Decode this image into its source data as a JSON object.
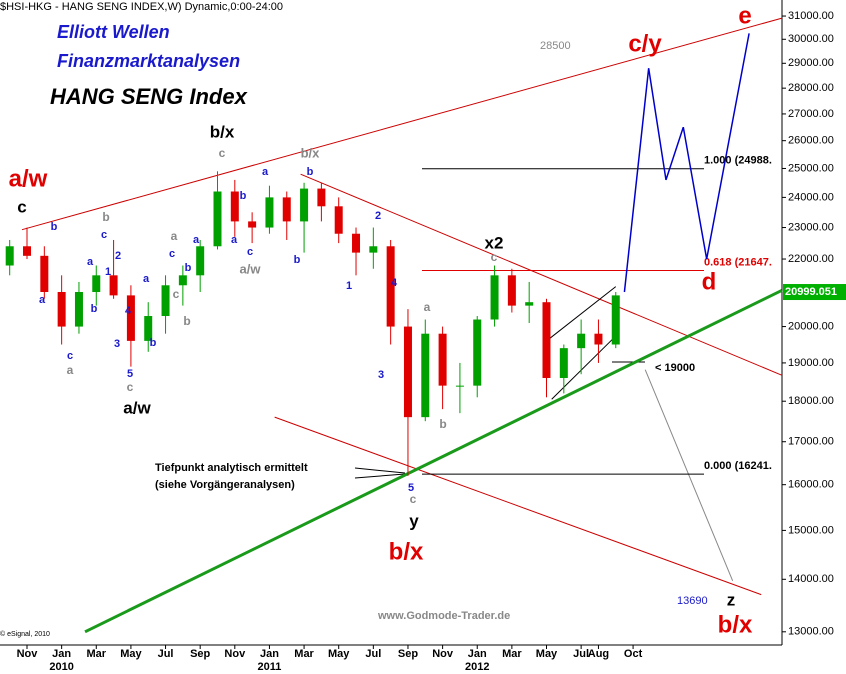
{
  "chart_data": {
    "type": "candlestick",
    "title": "$HSI-HKG - HANG SENG INDEX,W) Dynamic,0:00-24:00",
    "headers": [
      "Elliott Wellen",
      "Finanzmarktanalysen",
      "HANG SENG Index"
    ],
    "log_scale": true,
    "xlim": [
      -1.56,
      43.6
    ],
    "ylim": [
      12760,
      31710
    ],
    "yticks": [
      {
        "value": 13000,
        "label": "13000.00"
      },
      {
        "value": 14000,
        "label": "14000.00"
      },
      {
        "value": 15000,
        "label": "15000.00"
      },
      {
        "value": 16000,
        "label": "16000.00"
      },
      {
        "value": 17000,
        "label": "17000.00"
      },
      {
        "value": 18000,
        "label": "18000.00"
      },
      {
        "value": 19000,
        "label": "19000.00"
      },
      {
        "value": 20000,
        "label": "20000.00"
      },
      {
        "value": 22000,
        "label": "22000.00"
      },
      {
        "value": 23000,
        "label": "23000.00"
      },
      {
        "value": 24000,
        "label": "24000.00"
      },
      {
        "value": 25000,
        "label": "25000.00"
      },
      {
        "value": 26000,
        "label": "26000.00"
      },
      {
        "value": 27000,
        "label": "27000.00"
      },
      {
        "value": 28000,
        "label": "28000.00"
      },
      {
        "value": 29000,
        "label": "29000.00"
      },
      {
        "value": 30000,
        "label": "30000.00"
      },
      {
        "value": 31000,
        "label": "31000.00"
      }
    ],
    "xticks": [
      {
        "value": 0,
        "label": "Nov"
      },
      {
        "value": 2,
        "label": "Jan"
      },
      {
        "value": 4,
        "label": "Mar"
      },
      {
        "value": 6,
        "label": "May"
      },
      {
        "value": 8,
        "label": "Jul"
      },
      {
        "value": 10,
        "label": "Sep"
      },
      {
        "value": 12,
        "label": "Nov"
      },
      {
        "value": 14,
        "label": "Jan"
      },
      {
        "value": 16,
        "label": "Mar"
      },
      {
        "value": 18,
        "label": "May"
      },
      {
        "value": 20,
        "label": "Jul"
      },
      {
        "value": 22,
        "label": "Sep"
      },
      {
        "value": 24,
        "label": "Nov"
      },
      {
        "value": 26,
        "label": "Jan"
      },
      {
        "value": 28,
        "label": "Mar"
      },
      {
        "value": 30,
        "label": "May"
      },
      {
        "value": 32,
        "label": "Jul"
      },
      {
        "value": 33,
        "label": "Aug"
      },
      {
        "value": 35,
        "label": "Oct"
      }
    ],
    "year_labels": [
      {
        "value": 2,
        "label": "2010"
      },
      {
        "value": 14,
        "label": "2011"
      },
      {
        "value": 26,
        "label": "2012"
      }
    ],
    "up_color": "#00a000",
    "down_color": "#e00000",
    "candles": {
      "x": [
        -1,
        0,
        1,
        2,
        3,
        4,
        5,
        6,
        7,
        8,
        9,
        10,
        11,
        12,
        13,
        14,
        15,
        16,
        17,
        18,
        19,
        20,
        21,
        22,
        23,
        24,
        25,
        26,
        27,
        28,
        29,
        30,
        31,
        32,
        33,
        34
      ],
      "open": [
        21800,
        22400,
        22100,
        21000,
        20000,
        21000,
        21500,
        20900,
        19600,
        20300,
        21200,
        21500,
        22400,
        24200,
        23200,
        23000,
        24000,
        23200,
        24300,
        23700,
        22800,
        22200,
        22400,
        20000,
        17600,
        19800,
        18400,
        18400,
        20200,
        21500,
        20600,
        20700,
        18600,
        19400,
        19800,
        19500
      ],
      "high": [
        22600,
        23000,
        22400,
        21500,
        21300,
        21800,
        22600,
        21200,
        20700,
        21500,
        21800,
        22600,
        24900,
        24600,
        23500,
        24400,
        24200,
        24500,
        24500,
        24000,
        23000,
        23000,
        22600,
        20500,
        20200,
        20000,
        19000,
        20300,
        21800,
        21700,
        21300,
        20800,
        19500,
        20200,
        20200,
        21000
      ],
      "low": [
        21500,
        22000,
        20800,
        19500,
        19800,
        20600,
        20800,
        18900,
        19300,
        19800,
        20600,
        21000,
        22300,
        22700,
        22500,
        22800,
        22600,
        22200,
        23200,
        22500,
        21500,
        21700,
        19500,
        16200,
        17500,
        17800,
        17700,
        18100,
        20000,
        20400,
        20100,
        18100,
        18200,
        18700,
        19000,
        19400
      ],
      "close": [
        22400,
        22100,
        21000,
        20000,
        21000,
        21500,
        20900,
        19600,
        20300,
        21200,
        21500,
        22400,
        24200,
        23200,
        23000,
        24000,
        23200,
        24300,
        23700,
        22800,
        22200,
        22400,
        20000,
        17600,
        19800,
        18400,
        18400,
        20200,
        21500,
        20600,
        20700,
        18600,
        19400,
        19800,
        19500,
        20900
      ]
    },
    "last_price": 20999.051,
    "last_price_color": "#00b000",
    "fib_levels": [
      {
        "label": "1.000 (24988.",
        "value": 24988,
        "color": "#000000"
      },
      {
        "label": "0.618 (21647.",
        "value": 21647,
        "color": "#e00000"
      },
      {
        "label": "0.000 (16241.",
        "value": 16241,
        "color": "#000000"
      }
    ],
    "trend_lines": [
      {
        "x": [
          -0.29,
          43.6
        ],
        "y": [
          22930,
          30910
        ],
        "color": "#cc0000"
      },
      {
        "x": [
          15.8,
          43.6
        ],
        "y": [
          24800,
          18670
        ],
        "color": "#cc0000"
      },
      {
        "x": [
          14.3,
          42.4
        ],
        "y": [
          17600,
          13700
        ],
        "color": "#cc0000"
      },
      {
        "x": [
          3.35,
          43.6
        ],
        "y": [
          13000,
          21050
        ],
        "color": "#1a9a1a"
      },
      {
        "x": [
          29.9,
          34.0
        ],
        "y": [
          19560,
          21160
        ],
        "color": "#000000"
      },
      {
        "x": [
          30.3,
          33.8
        ],
        "y": [
          18050,
          19640
        ],
        "color": "#000000"
      },
      {
        "x": [
          35.7,
          40.75
        ],
        "y": [
          18820,
          13970
        ],
        "color": "#888888"
      }
    ],
    "projection": {
      "x": [
        34.5,
        35.9,
        36.9,
        37.9,
        39.25,
        41.7
      ],
      "y": [
        21000,
        28800,
        24600,
        26500,
        22000,
        30250
      ],
      "color": "#0000cc"
    },
    "targets": [
      28500,
      13690
    ],
    "notes": [
      "Tiefpunkt analytisch ermittelt",
      "(siehe Vorgängeranalysen)",
      "< 19000",
      "www.Godmode-Trader.de",
      "© eSignal, 2010"
    ],
    "wave_labels": [
      {
        "text": "a/w",
        "color": "#e00000"
      },
      {
        "text": "c",
        "color": "#000000"
      },
      {
        "text": "b",
        "color": "#1a1acc"
      },
      {
        "text": "a",
        "color": "#1a1acc"
      },
      {
        "text": "c",
        "color": "#1a1acc"
      },
      {
        "text": "a",
        "color": "#888888"
      },
      {
        "text": "a",
        "color": "#1a1acc"
      },
      {
        "text": "c",
        "color": "#1a1acc"
      },
      {
        "text": "b",
        "color": "#888888"
      },
      {
        "text": "2",
        "color": "#1a1acc"
      },
      {
        "text": "1",
        "color": "#1a1acc"
      },
      {
        "text": "b",
        "color": "#1a1acc"
      },
      {
        "text": "4",
        "color": "#1a1acc"
      },
      {
        "text": "3",
        "color": "#1a1acc"
      },
      {
        "text": "5",
        "color": "#1a1acc"
      },
      {
        "text": "c",
        "color": "#888888"
      },
      {
        "text": "a/w",
        "color": "#000000"
      },
      {
        "text": "b",
        "color": "#1a1acc"
      },
      {
        "text": "a",
        "color": "#1a1acc"
      },
      {
        "text": "c",
        "color": "#1a1acc"
      },
      {
        "text": "a",
        "color": "#888888"
      },
      {
        "text": "b",
        "color": "#1a1acc"
      },
      {
        "text": "c",
        "color": "#888888"
      },
      {
        "text": "b",
        "color": "#888888"
      },
      {
        "text": "a",
        "color": "#1a1acc"
      },
      {
        "text": "b/x",
        "color": "#000000"
      },
      {
        "text": "c",
        "color": "#888888"
      },
      {
        "text": "b",
        "color": "#1a1acc"
      },
      {
        "text": "a",
        "color": "#1a1acc"
      },
      {
        "text": "a",
        "color": "#1a1acc"
      },
      {
        "text": "c",
        "color": "#1a1acc"
      },
      {
        "text": "a/w",
        "color": "#888888"
      },
      {
        "text": "b/x",
        "color": "#888888"
      },
      {
        "text": "b",
        "color": "#1a1acc"
      },
      {
        "text": "b",
        "color": "#1a1acc"
      },
      {
        "text": "2",
        "color": "#1a1acc"
      },
      {
        "text": "1",
        "color": "#1a1acc"
      },
      {
        "text": "4",
        "color": "#1a1acc"
      },
      {
        "text": "3",
        "color": "#1a1acc"
      },
      {
        "text": "a",
        "color": "#888888"
      },
      {
        "text": "b",
        "color": "#888888"
      },
      {
        "text": "5",
        "color": "#1a1acc"
      },
      {
        "text": "c",
        "color": "#888888"
      },
      {
        "text": "y",
        "color": "#000000"
      },
      {
        "text": "b/x",
        "color": "#e00000"
      },
      {
        "text": "x2",
        "color": "#000000"
      },
      {
        "text": "c",
        "color": "#888888"
      },
      {
        "text": "c/y",
        "color": "#e00000"
      },
      {
        "text": "e",
        "color": "#e00000"
      },
      {
        "text": "d",
        "color": "#e00000"
      },
      {
        "text": "z",
        "color": "#000000"
      },
      {
        "text": "b/x",
        "color": "#e00000"
      }
    ]
  }
}
